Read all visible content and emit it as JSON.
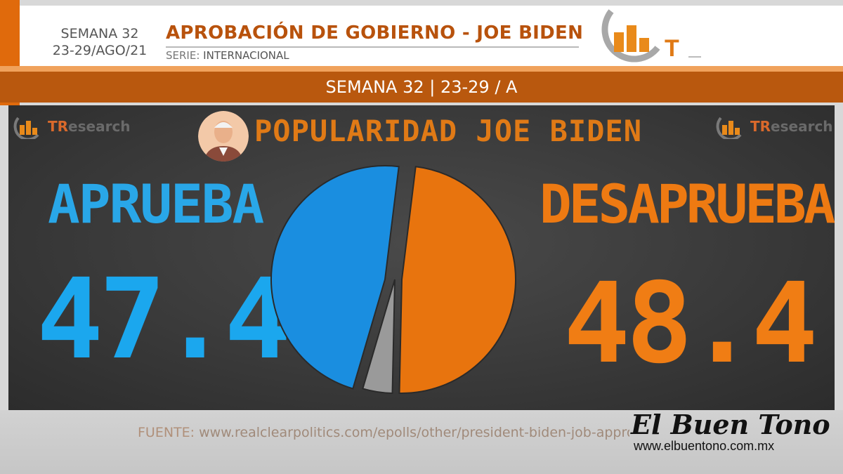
{
  "header": {
    "week": "SEMANA 32",
    "dates": "23-29/AGO/21",
    "title": "APROBACIÓN DE GOBIERNO - JOE BIDEN",
    "serie_key": "SERIE:",
    "serie_value": "INTERNACIONAL",
    "logo_letter": "T"
  },
  "week_bar": "SEMANA 32 | 23-29 / A",
  "panel": {
    "brand_prefix": "TR",
    "brand_rest": "esearch",
    "title": "POPULARIDAD JOE BIDEN",
    "approve_label": "APRUEBA",
    "disapprove_label": "DESAPRUEBA"
  },
  "chart_data": {
    "type": "pie",
    "title": "POPULARIDAD JOE BIDEN",
    "categories": [
      "APRUEBA",
      "DESAPRUEBA",
      ""
    ],
    "values": [
      47.4,
      48.4,
      4.2
    ],
    "labels": [
      "47.4",
      "48.4",
      ""
    ],
    "colors": [
      "#1a8ee0",
      "#e8740e",
      "#9a9a9a"
    ]
  },
  "source": {
    "key": "FUENTE:",
    "url": "www.realclearpolitics.com/epolls/other/president-biden-job-approval"
  },
  "watermark": {
    "name": "El Buen Tono",
    "url": "www.elbuentono.com.mx"
  },
  "colors": {
    "orange": "#b9580e",
    "blue": "#1ba7ee",
    "panel": "#3a3a3a"
  }
}
